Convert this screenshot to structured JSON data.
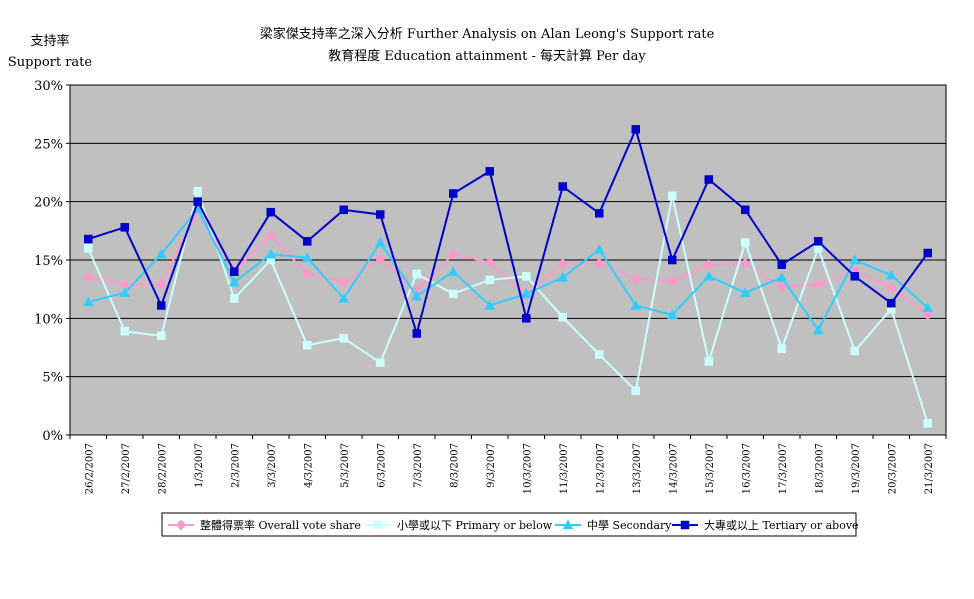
{
  "chart_data": {
    "type": "line",
    "title_line1": "梁家傑支持率之深入分析 Further Analysis on Alan Leong's Support rate",
    "title_line2": "教育程度 Education attainment - 每天計算 Per day",
    "ylabel_line1": "支持率",
    "ylabel_line2": "Support rate",
    "ylim": [
      0,
      30
    ],
    "yticks": [
      "0%",
      "5%",
      "10%",
      "15%",
      "20%",
      "25%",
      "30%"
    ],
    "grid": true,
    "legend_position": "bottom",
    "plot_background": "#c0c0c0",
    "x": [
      "26/2/2007",
      "27/2/2007",
      "28/2/2007",
      "1/3/2007",
      "2/3/2007",
      "3/3/2007",
      "4/3/2007",
      "5/3/2007",
      "6/3/2007",
      "7/3/2007",
      "8/3/2007",
      "9/3/2007",
      "10/3/2007",
      "11/3/2007",
      "12/3/2007",
      "13/3/2007",
      "14/3/2007",
      "15/3/2007",
      "16/3/2007",
      "17/3/2007",
      "18/3/2007",
      "19/3/2007",
      "20/3/2007",
      "21/3/2007"
    ],
    "series": [
      {
        "name": "整體得票率 Overall vote share",
        "color": "#ff99cc",
        "marker": "diamond",
        "values": [
          13.5,
          12.9,
          12.9,
          19.3,
          14.1,
          17.1,
          13.8,
          13.1,
          15.1,
          12.4,
          15.5,
          14.8,
          11.9,
          14.7,
          14.7,
          13.4,
          13.2,
          14.6,
          14.7,
          12.7,
          12.9,
          14.1,
          12.6,
          10.3
        ]
      },
      {
        "name": "小學或以下 Primary or below",
        "color": "#ccffff",
        "marker": "square",
        "values": [
          16.0,
          8.9,
          8.5,
          20.9,
          11.7,
          15.0,
          7.7,
          8.3,
          6.2,
          13.8,
          12.1,
          13.3,
          13.6,
          10.1,
          6.9,
          3.8,
          20.5,
          6.3,
          16.5,
          7.4,
          16.0,
          7.2,
          10.8,
          1.0
        ]
      },
      {
        "name": "中學 Secondary",
        "color": "#33ccff",
        "marker": "triangle",
        "values": [
          11.4,
          12.2,
          15.5,
          19.4,
          13.1,
          15.5,
          15.2,
          11.7,
          16.5,
          11.9,
          14.0,
          11.1,
          12.1,
          13.5,
          15.9,
          11.1,
          10.3,
          13.6,
          12.2,
          13.5,
          9.0,
          15.0,
          13.7,
          10.9
        ]
      },
      {
        "name": "大專或以上 Tertiary or above",
        "color": "#0000cc",
        "marker": "square",
        "values": [
          16.8,
          17.8,
          11.1,
          20.0,
          14.0,
          19.1,
          16.6,
          19.3,
          18.9,
          8.7,
          20.7,
          22.6,
          10.0,
          21.3,
          19.0,
          26.2,
          15.0,
          21.9,
          19.3,
          14.6,
          16.6,
          13.6,
          11.3,
          15.6
        ]
      }
    ]
  }
}
